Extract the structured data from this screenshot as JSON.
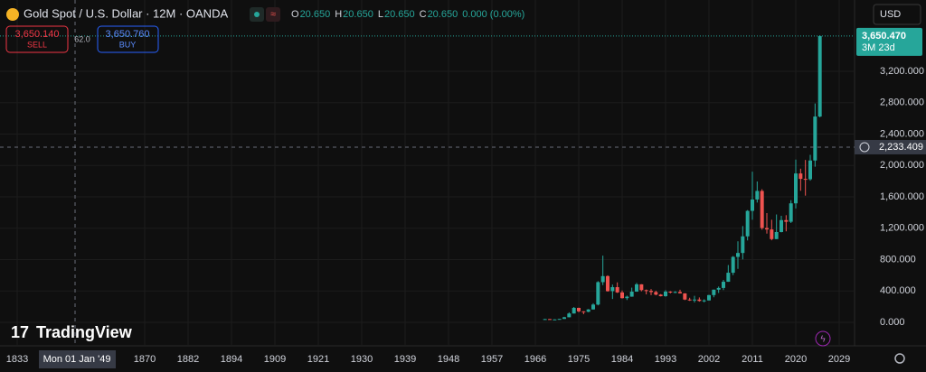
{
  "ui": {
    "title": "Gold Spot / U.S. Dollar · 12M · OANDA",
    "ohlc_legend": [
      {
        "key": "O",
        "value": "20.650"
      },
      {
        "key": "H",
        "value": "20.650"
      },
      {
        "key": "L",
        "value": "20.650"
      },
      {
        "key": "C",
        "value": "20.650"
      }
    ],
    "change": "0.000 (0.00%)",
    "sell": {
      "price": "3,650.140",
      "label": "SELL"
    },
    "spread": "62.0",
    "buy": {
      "price": "3,650.760",
      "label": "BUY"
    },
    "currency": "USD",
    "countdown": "3M 23d",
    "crosshair_date": "Mon 01 Jan '49",
    "logo": "TradingView"
  },
  "chart_data": {
    "type": "candlestick",
    "up_color": "#26a69a",
    "down_color": "#ef5350",
    "x": [
      1968,
      1969,
      1970,
      1971,
      1972,
      1973,
      1974,
      1975,
      1976,
      1977,
      1978,
      1979,
      1980,
      1981,
      1982,
      1983,
      1984,
      1985,
      1986,
      1987,
      1988,
      1989,
      1990,
      1991,
      1992,
      1993,
      1994,
      1995,
      1996,
      1997,
      1998,
      1999,
      2000,
      2001,
      2002,
      2003,
      2004,
      2005,
      2006,
      2007,
      2008,
      2009,
      2010,
      2011,
      2012,
      2013,
      2014,
      2015,
      2016,
      2017,
      2018,
      2019,
      2020,
      2021,
      2022,
      2023,
      2024,
      2025
    ],
    "open": [
      35,
      41,
      35,
      37,
      43,
      64,
      112,
      184,
      140,
      134,
      164,
      226,
      512,
      589,
      397,
      448,
      381,
      308,
      327,
      391,
      484,
      410,
      401,
      386,
      353,
      333,
      391,
      383,
      387,
      369,
      290,
      288,
      290,
      272,
      279,
      347,
      416,
      438,
      517,
      632,
      834,
      884,
      1096,
      1421,
      1566,
      1675,
      1202,
      1184,
      1061,
      1151,
      1303,
      1282,
      1517,
      1898,
      1829,
      1824,
      2063,
      2624
    ],
    "high": [
      43,
      44,
      39,
      44,
      70,
      127,
      195,
      186,
      141,
      168,
      243,
      524,
      850,
      599,
      481,
      509,
      405,
      340,
      442,
      502,
      486,
      418,
      424,
      403,
      360,
      409,
      397,
      396,
      415,
      370,
      313,
      338,
      317,
      293,
      350,
      417,
      456,
      540,
      730,
      845,
      1033,
      1227,
      1431,
      1921,
      1796,
      1697,
      1392,
      1308,
      1375,
      1358,
      1366,
      1557,
      2075,
      1959,
      2070,
      2135,
      2790,
      3660
    ],
    "low": [
      35,
      35,
      35,
      37,
      43,
      64,
      112,
      128,
      103,
      129,
      162,
      216,
      474,
      391,
      297,
      374,
      303,
      284,
      326,
      390,
      395,
      356,
      346,
      344,
      330,
      326,
      369,
      372,
      367,
      283,
      273,
      252,
      263,
      255,
      277,
      319,
      374,
      411,
      516,
      602,
      681,
      802,
      1044,
      1308,
      1527,
      1181,
      1131,
      1046,
      1061,
      1146,
      1160,
      1266,
      1451,
      1677,
      1615,
      1805,
      1984,
      2614
    ],
    "close": [
      41,
      35,
      37,
      43,
      64,
      112,
      184,
      140,
      134,
      164,
      226,
      512,
      589,
      397,
      448,
      381,
      308,
      327,
      391,
      484,
      410,
      401,
      386,
      353,
      333,
      391,
      383,
      387,
      369,
      290,
      288,
      290,
      272,
      279,
      347,
      416,
      438,
      517,
      632,
      834,
      884,
      1096,
      1421,
      1566,
      1675,
      1202,
      1184,
      1061,
      1151,
      1303,
      1282,
      1517,
      1898,
      1829,
      1824,
      2063,
      2624,
      3650.47
    ],
    "last_price": {
      "value": 3650.47,
      "label": "3,650.470"
    },
    "crosshair_price": {
      "value": 2233.409,
      "label": "2,233.409"
    },
    "ylim": [
      -300,
      4110
    ],
    "yticks": [
      {
        "value": 0,
        "label": "0.000"
      },
      {
        "value": 400,
        "label": "400.000"
      },
      {
        "value": 800,
        "label": "800.000"
      },
      {
        "value": 1200,
        "label": "1,200.000"
      },
      {
        "value": 1600,
        "label": "1,600.000"
      },
      {
        "value": 2000,
        "label": "2,000.000"
      },
      {
        "value": 2400,
        "label": "2,400.000"
      },
      {
        "value": 2800,
        "label": "2,800.000"
      },
      {
        "value": 3200,
        "label": "3,200.000"
      }
    ],
    "xticks": [
      1833,
      1870,
      1882,
      1894,
      1909,
      1921,
      1930,
      1939,
      1948,
      1957,
      1966,
      1975,
      1984,
      1993,
      2002,
      2011,
      2020,
      2029
    ],
    "grid": true
  }
}
